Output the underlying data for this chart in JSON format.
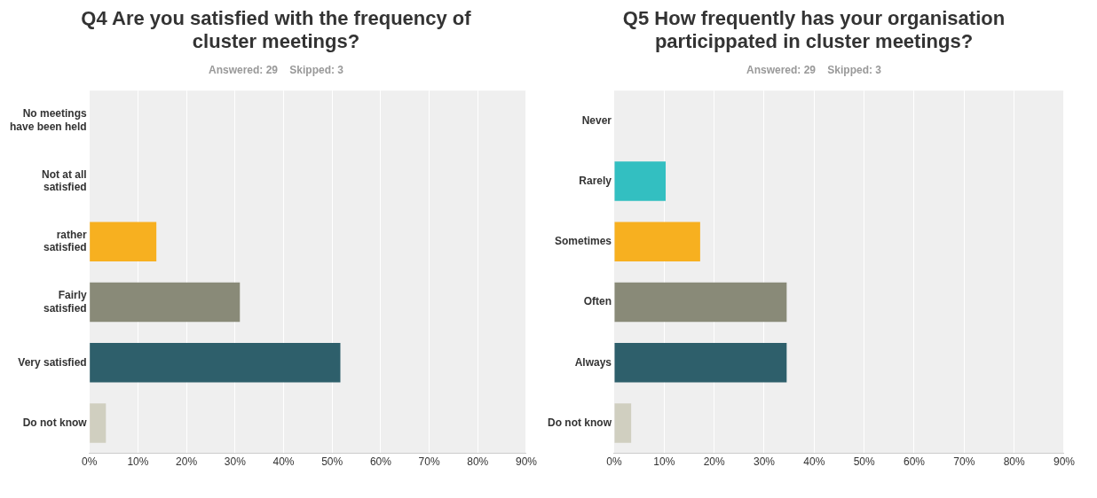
{
  "chart_data": [
    {
      "type": "bar",
      "orientation": "horizontal",
      "title": "Q4 Are you satisfied with the frequency of cluster meetings?",
      "subtitle": "Answered: 29    Skipped: 3",
      "categories": [
        "No meetings have been held",
        "Not at all satisfied",
        "rather satisfied",
        "Fairly satisfied",
        "Very satisfied",
        "Do not know"
      ],
      "values": [
        0,
        0,
        13.8,
        31.0,
        51.7,
        3.4
      ],
      "colors": [
        "#33bfc1",
        "#33bfc1",
        "#f7b020",
        "#898a78",
        "#2e5f6b",
        "#d0cfc0"
      ],
      "xlim": [
        0,
        90
      ],
      "xticks": [
        {
          "value": 0,
          "label": "0%"
        },
        {
          "value": 10,
          "label": "10%"
        },
        {
          "value": 20,
          "label": "20%"
        },
        {
          "value": 30,
          "label": "30%"
        },
        {
          "value": 40,
          "label": "40%"
        },
        {
          "value": 50,
          "label": "50%"
        },
        {
          "value": 60,
          "label": "60%"
        },
        {
          "value": 70,
          "label": "70%"
        },
        {
          "value": 80,
          "label": "80%"
        },
        {
          "value": 90,
          "label": "90%"
        }
      ],
      "grid": "x"
    },
    {
      "type": "bar",
      "orientation": "horizontal",
      "title": "Q5 How frequently has your organisation particippated in cluster meetings?",
      "subtitle": "Answered: 29    Skipped: 3",
      "categories": [
        "Never",
        "Rarely",
        "Sometimes",
        "Often",
        "Always",
        "Do not know"
      ],
      "values": [
        0,
        10.3,
        17.2,
        34.5,
        34.5,
        3.4
      ],
      "colors": [
        "#d0cfc0",
        "#33bfc1",
        "#f7b020",
        "#898a78",
        "#2e5f6b",
        "#d0cfc0"
      ],
      "xlim": [
        0,
        90
      ],
      "xticks": [
        {
          "value": 0,
          "label": "0%"
        },
        {
          "value": 10,
          "label": "10%"
        },
        {
          "value": 20,
          "label": "20%"
        },
        {
          "value": 30,
          "label": "30%"
        },
        {
          "value": 40,
          "label": "40%"
        },
        {
          "value": 50,
          "label": "50%"
        },
        {
          "value": 60,
          "label": "60%"
        },
        {
          "value": 70,
          "label": "70%"
        },
        {
          "value": 80,
          "label": "80%"
        },
        {
          "value": 90,
          "label": "90%"
        }
      ],
      "grid": "x"
    }
  ]
}
